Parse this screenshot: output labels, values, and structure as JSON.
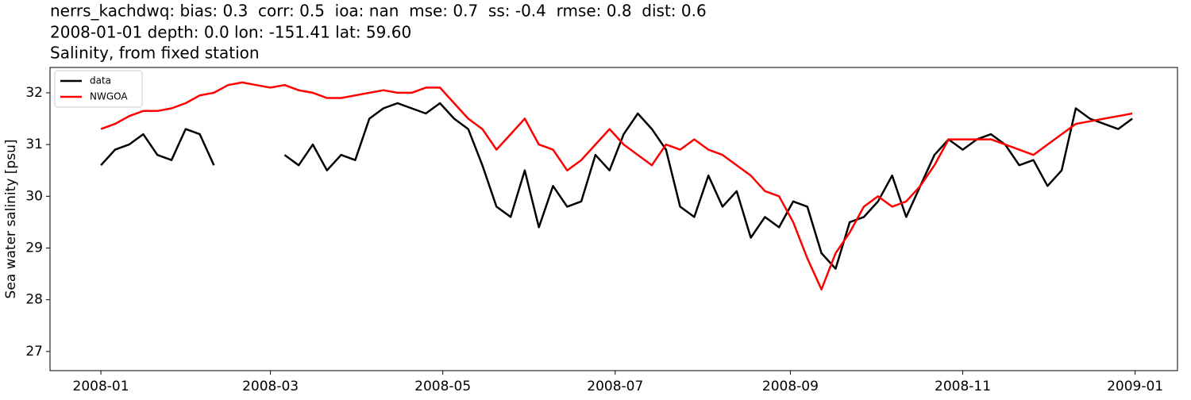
{
  "chart_data": {
    "type": "line",
    "title_lines": [
      "nerrs_kachdwq: bias: 0.3  corr: 0.5  ioa: nan  mse: 0.7  ss: -0.4  rmse: 0.8  dist: 0.6",
      "2008-01-01 depth: 0.0 lon: -151.41 lat: 59.60",
      "Salinity, from fixed station"
    ],
    "y_label": "Sea water salinity [psu]",
    "x": [
      0,
      5,
      10,
      15,
      20,
      25,
      30,
      35,
      40,
      45,
      50,
      55,
      60,
      65,
      70,
      75,
      80,
      85,
      90,
      95,
      100,
      105,
      110,
      115,
      120,
      125,
      130,
      135,
      140,
      145,
      150,
      155,
      160,
      165,
      170,
      175,
      180,
      185,
      190,
      195,
      200,
      205,
      210,
      215,
      220,
      225,
      230,
      235,
      240,
      245,
      250,
      255,
      260,
      265,
      270,
      275,
      280,
      285,
      290,
      295,
      300,
      305,
      310,
      315,
      320,
      325,
      330,
      335,
      340,
      345,
      350,
      355,
      360,
      365
    ],
    "series": [
      {
        "name": "data",
        "color": "#000000",
        "values": [
          30.6,
          30.9,
          31.0,
          31.2,
          30.8,
          30.7,
          31.3,
          31.2,
          30.6,
          null,
          null,
          null,
          null,
          30.8,
          30.6,
          31.0,
          30.5,
          30.8,
          30.7,
          31.5,
          31.7,
          31.8,
          31.7,
          31.6,
          31.8,
          31.5,
          31.3,
          30.6,
          29.8,
          29.6,
          30.5,
          29.4,
          30.2,
          29.8,
          29.9,
          30.8,
          30.5,
          31.2,
          31.6,
          31.3,
          30.9,
          29.8,
          29.6,
          30.4,
          29.8,
          30.1,
          29.2,
          29.6,
          29.4,
          29.9,
          29.8,
          28.9,
          28.6,
          29.5,
          29.6,
          29.9,
          30.4,
          29.6,
          30.2,
          30.8,
          31.1,
          30.9,
          31.1,
          31.2,
          31.0,
          30.6,
          30.7,
          30.2,
          30.5,
          31.7,
          31.5,
          31.4,
          31.3,
          31.5
        ]
      },
      {
        "name": "NWGOA",
        "color": "#ff0000",
        "values": [
          31.3,
          31.4,
          31.55,
          31.65,
          31.65,
          31.7,
          31.8,
          31.95,
          32.0,
          32.15,
          32.2,
          32.15,
          32.1,
          32.15,
          32.05,
          32.0,
          31.9,
          31.9,
          31.95,
          32.0,
          32.05,
          32.0,
          32.0,
          32.1,
          32.1,
          31.8,
          31.5,
          31.3,
          30.9,
          31.2,
          31.5,
          31.0,
          30.9,
          30.5,
          30.7,
          31.0,
          31.3,
          31.0,
          30.8,
          30.6,
          31.0,
          30.9,
          31.1,
          30.9,
          30.8,
          30.6,
          30.4,
          30.1,
          30.0,
          29.5,
          28.8,
          28.2,
          28.9,
          29.3,
          29.8,
          30.0,
          29.8,
          29.9,
          30.2,
          30.6,
          31.1,
          31.1,
          31.1,
          31.1,
          31.0,
          30.9,
          30.8,
          31.0,
          31.2,
          31.4,
          31.45,
          31.5,
          31.55,
          31.6
        ]
      }
    ],
    "xlim": [
      -18,
      381
    ],
    "xticks": [
      {
        "value": 0,
        "label": "2008-01"
      },
      {
        "value": 60,
        "label": "2008-03"
      },
      {
        "value": 121,
        "label": "2008-05"
      },
      {
        "value": 182,
        "label": "2008-07"
      },
      {
        "value": 244,
        "label": "2008-09"
      },
      {
        "value": 305,
        "label": "2008-11"
      },
      {
        "value": 366,
        "label": "2009-01"
      }
    ],
    "ylim": [
      26.63,
      32.49
    ],
    "yticks": [
      27,
      28,
      29,
      30,
      31,
      32
    ],
    "grid": false,
    "legend": "upper-left"
  }
}
